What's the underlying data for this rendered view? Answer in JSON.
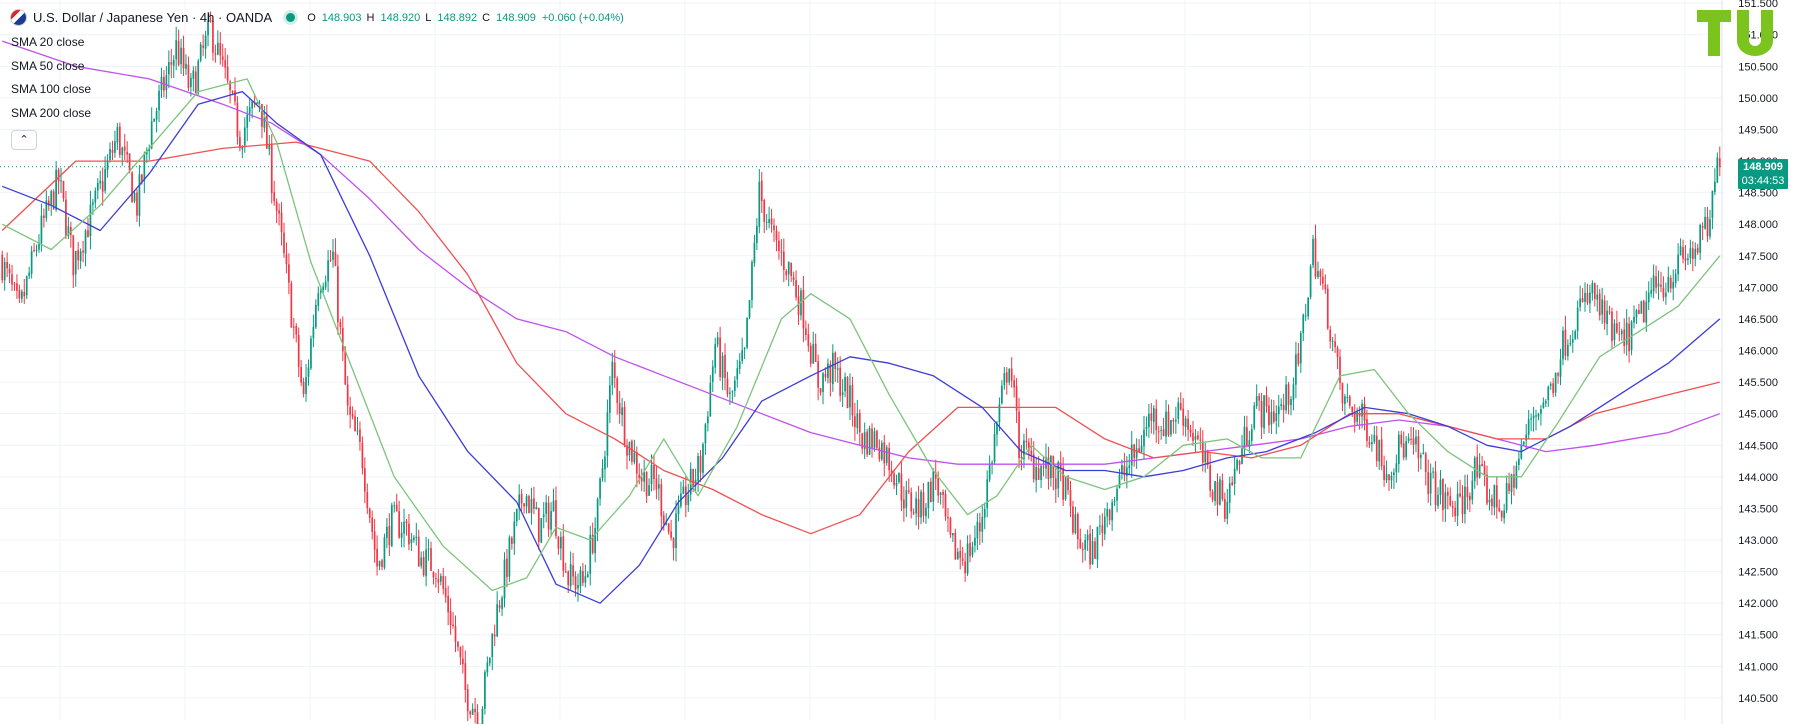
{
  "header": {
    "symbol_title": "U.S. Dollar / Japanese Yen · 4h · OANDA",
    "ohlc": [
      {
        "label": "O",
        "value": "148.903"
      },
      {
        "label": "H",
        "value": "148.920"
      },
      {
        "label": "L",
        "value": "148.892"
      },
      {
        "label": "C",
        "value": "148.909"
      },
      {
        "label": "",
        "value": "+0.060 (+0.04%)"
      }
    ]
  },
  "indicators": {
    "items": [
      "SMA 20 close",
      "SMA 50 close",
      "SMA 100 close",
      "SMA 200 close"
    ],
    "collapse_icon": "chevron-up-icon"
  },
  "last_price": {
    "value": "148.909",
    "countdown": "03:44:53",
    "color": "#089981"
  },
  "logo": {
    "icon": "tradingview-logo",
    "color": "#7bc41d"
  },
  "colors": {
    "up": "#089981",
    "down": "#f23645",
    "sma20": "#7cc47c",
    "sma50": "#3c3cd8",
    "sma100": "#f05050",
    "sma200": "#c050f0",
    "grid": "#f0f3fa"
  },
  "chart_data": {
    "type": "candlestick",
    "instrument": "USD/JPY",
    "timeframe": "4h",
    "ylim": [
      140.15,
      151.55
    ],
    "y_ticks": [
      "140.500",
      "141.000",
      "141.500",
      "142.000",
      "142.500",
      "143.000",
      "143.500",
      "144.000",
      "144.500",
      "145.000",
      "145.500",
      "146.000",
      "146.500",
      "147.000",
      "147.500",
      "148.000",
      "148.500",
      "149.000",
      "149.500",
      "150.000",
      "150.500",
      "151.000",
      "151.500"
    ],
    "legend": "top-left",
    "grid": true,
    "last_value": 148.909,
    "price_path": [
      [
        0,
        147.5
      ],
      [
        8,
        146.6
      ],
      [
        16,
        147.8
      ],
      [
        24,
        148.7
      ],
      [
        30,
        147.4
      ],
      [
        38,
        148.2
      ],
      [
        48,
        149.4
      ],
      [
        56,
        148.3
      ],
      [
        62,
        149.6
      ],
      [
        72,
        150.8
      ],
      [
        78,
        150.1
      ],
      [
        86,
        151.1
      ],
      [
        92,
        150.3
      ],
      [
        98,
        149.4
      ],
      [
        106,
        150.0
      ],
      [
        112,
        148.5
      ],
      [
        118,
        146.9
      ],
      [
        124,
        145.2
      ],
      [
        130,
        147.1
      ],
      [
        136,
        147.5
      ],
      [
        142,
        145.0
      ],
      [
        148,
        144.3
      ],
      [
        154,
        142.6
      ],
      [
        160,
        143.3
      ],
      [
        166,
        143.2
      ],
      [
        172,
        142.7
      ],
      [
        178,
        142.6
      ],
      [
        184,
        141.8
      ],
      [
        190,
        140.6
      ],
      [
        196,
        140.2
      ],
      [
        202,
        141.7
      ],
      [
        208,
        142.8
      ],
      [
        214,
        143.8
      ],
      [
        220,
        143.2
      ],
      [
        226,
        143.5
      ],
      [
        232,
        142.4
      ],
      [
        238,
        142.3
      ],
      [
        244,
        143.4
      ],
      [
        250,
        145.7
      ],
      [
        256,
        144.6
      ],
      [
        262,
        144.0
      ],
      [
        268,
        143.9
      ],
      [
        274,
        143.0
      ],
      [
        280,
        143.7
      ],
      [
        286,
        144.2
      ],
      [
        292,
        146.1
      ],
      [
        298,
        145.2
      ],
      [
        304,
        145.9
      ],
      [
        310,
        148.5
      ],
      [
        316,
        147.7
      ],
      [
        322,
        147.3
      ],
      [
        328,
        146.6
      ],
      [
        334,
        145.5
      ],
      [
        340,
        145.7
      ],
      [
        346,
        145.3
      ],
      [
        352,
        144.6
      ],
      [
        358,
        144.6
      ],
      [
        364,
        144.2
      ],
      [
        370,
        143.6
      ],
      [
        376,
        143.5
      ],
      [
        382,
        144.0
      ],
      [
        388,
        142.9
      ],
      [
        394,
        142.7
      ],
      [
        400,
        143.2
      ],
      [
        406,
        144.6
      ],
      [
        412,
        145.9
      ],
      [
        416,
        144.5
      ],
      [
        422,
        144.2
      ],
      [
        428,
        144.1
      ],
      [
        434,
        143.9
      ],
      [
        440,
        143.0
      ],
      [
        446,
        142.8
      ],
      [
        452,
        143.5
      ],
      [
        458,
        144.0
      ],
      [
        464,
        144.4
      ],
      [
        470,
        145.0
      ],
      [
        476,
        144.8
      ],
      [
        482,
        145.1
      ],
      [
        488,
        144.6
      ],
      [
        494,
        143.9
      ],
      [
        500,
        143.6
      ],
      [
        506,
        144.3
      ],
      [
        512,
        145.1
      ],
      [
        518,
        145.0
      ],
      [
        524,
        145.1
      ],
      [
        530,
        145.8
      ],
      [
        536,
        147.6
      ],
      [
        542,
        146.6
      ],
      [
        548,
        145.2
      ],
      [
        554,
        145.0
      ],
      [
        560,
        144.7
      ],
      [
        566,
        144.1
      ],
      [
        572,
        144.5
      ],
      [
        578,
        144.4
      ],
      [
        584,
        143.9
      ],
      [
        590,
        143.6
      ],
      [
        596,
        143.5
      ],
      [
        602,
        144.1
      ],
      [
        608,
        143.7
      ],
      [
        614,
        143.5
      ],
      [
        620,
        144.3
      ],
      [
        626,
        145.0
      ],
      [
        632,
        145.3
      ],
      [
        638,
        146.1
      ],
      [
        644,
        146.6
      ],
      [
        650,
        146.9
      ],
      [
        656,
        146.4
      ],
      [
        662,
        146.1
      ],
      [
        668,
        146.4
      ],
      [
        674,
        146.9
      ],
      [
        680,
        147.1
      ],
      [
        686,
        147.4
      ],
      [
        692,
        147.6
      ],
      [
        698,
        148.0
      ],
      [
        701,
        148.909
      ]
    ],
    "sma20": [
      [
        0,
        148.0
      ],
      [
        20,
        147.6
      ],
      [
        40,
        148.3
      ],
      [
        60,
        149.2
      ],
      [
        80,
        150.1
      ],
      [
        100,
        150.3
      ],
      [
        112,
        149.3
      ],
      [
        126,
        147.4
      ],
      [
        140,
        146.0
      ],
      [
        160,
        144.0
      ],
      [
        180,
        142.9
      ],
      [
        200,
        142.2
      ],
      [
        214,
        142.4
      ],
      [
        226,
        143.2
      ],
      [
        240,
        143.0
      ],
      [
        256,
        143.7
      ],
      [
        270,
        144.6
      ],
      [
        284,
        143.7
      ],
      [
        300,
        144.8
      ],
      [
        318,
        146.5
      ],
      [
        330,
        146.9
      ],
      [
        346,
        146.5
      ],
      [
        362,
        145.3
      ],
      [
        380,
        144.1
      ],
      [
        394,
        143.4
      ],
      [
        406,
        143.7
      ],
      [
        420,
        144.5
      ],
      [
        434,
        144.0
      ],
      [
        450,
        143.8
      ],
      [
        466,
        144.0
      ],
      [
        482,
        144.5
      ],
      [
        500,
        144.6
      ],
      [
        514,
        144.3
      ],
      [
        530,
        144.3
      ],
      [
        546,
        145.6
      ],
      [
        560,
        145.7
      ],
      [
        574,
        145.0
      ],
      [
        590,
        144.4
      ],
      [
        606,
        144.0
      ],
      [
        620,
        144.0
      ],
      [
        634,
        144.8
      ],
      [
        652,
        145.9
      ],
      [
        668,
        146.3
      ],
      [
        684,
        146.7
      ],
      [
        701,
        147.5
      ]
    ],
    "sma50": [
      [
        0,
        148.6
      ],
      [
        20,
        148.3
      ],
      [
        40,
        147.9
      ],
      [
        60,
        148.8
      ],
      [
        80,
        149.9
      ],
      [
        98,
        150.1
      ],
      [
        112,
        149.6
      ],
      [
        130,
        149.1
      ],
      [
        150,
        147.5
      ],
      [
        170,
        145.6
      ],
      [
        190,
        144.4
      ],
      [
        210,
        143.6
      ],
      [
        226,
        142.3
      ],
      [
        244,
        142.0
      ],
      [
        260,
        142.6
      ],
      [
        276,
        143.6
      ],
      [
        294,
        144.3
      ],
      [
        310,
        145.2
      ],
      [
        330,
        145.6
      ],
      [
        346,
        145.9
      ],
      [
        362,
        145.8
      ],
      [
        380,
        145.6
      ],
      [
        400,
        145.1
      ],
      [
        416,
        144.4
      ],
      [
        434,
        144.1
      ],
      [
        450,
        144.1
      ],
      [
        466,
        144.0
      ],
      [
        482,
        144.1
      ],
      [
        500,
        144.3
      ],
      [
        516,
        144.4
      ],
      [
        536,
        144.7
      ],
      [
        556,
        145.1
      ],
      [
        574,
        145.0
      ],
      [
        590,
        144.8
      ],
      [
        606,
        144.5
      ],
      [
        620,
        144.4
      ],
      [
        640,
        144.8
      ],
      [
        660,
        145.3
      ],
      [
        680,
        145.8
      ],
      [
        701,
        146.5
      ]
    ],
    "sma100": [
      [
        0,
        147.9
      ],
      [
        30,
        149.0
      ],
      [
        60,
        149.0
      ],
      [
        90,
        149.2
      ],
      [
        120,
        149.3
      ],
      [
        150,
        149.0
      ],
      [
        170,
        148.2
      ],
      [
        190,
        147.2
      ],
      [
        210,
        145.8
      ],
      [
        230,
        145.0
      ],
      [
        250,
        144.6
      ],
      [
        270,
        144.1
      ],
      [
        290,
        143.8
      ],
      [
        310,
        143.4
      ],
      [
        330,
        143.1
      ],
      [
        350,
        143.4
      ],
      [
        370,
        144.4
      ],
      [
        390,
        145.1
      ],
      [
        410,
        145.1
      ],
      [
        430,
        145.1
      ],
      [
        450,
        144.6
      ],
      [
        470,
        144.3
      ],
      [
        490,
        144.4
      ],
      [
        510,
        144.3
      ],
      [
        530,
        144.5
      ],
      [
        550,
        145.0
      ],
      [
        570,
        145.0
      ],
      [
        590,
        144.8
      ],
      [
        610,
        144.6
      ],
      [
        630,
        144.6
      ],
      [
        650,
        145.0
      ],
      [
        680,
        145.3
      ],
      [
        701,
        145.5
      ]
    ],
    "sma200": [
      [
        0,
        150.9
      ],
      [
        30,
        150.5
      ],
      [
        60,
        150.3
      ],
      [
        90,
        149.9
      ],
      [
        110,
        149.6
      ],
      [
        130,
        149.1
      ],
      [
        150,
        148.4
      ],
      [
        170,
        147.6
      ],
      [
        190,
        147.0
      ],
      [
        210,
        146.5
      ],
      [
        230,
        146.3
      ],
      [
        250,
        145.9
      ],
      [
        270,
        145.6
      ],
      [
        290,
        145.3
      ],
      [
        310,
        145.0
      ],
      [
        330,
        144.7
      ],
      [
        350,
        144.5
      ],
      [
        370,
        144.3
      ],
      [
        390,
        144.2
      ],
      [
        410,
        144.2
      ],
      [
        430,
        144.2
      ],
      [
        450,
        144.2
      ],
      [
        470,
        144.3
      ],
      [
        490,
        144.4
      ],
      [
        510,
        144.5
      ],
      [
        530,
        144.6
      ],
      [
        550,
        144.8
      ],
      [
        570,
        144.9
      ],
      [
        590,
        144.8
      ],
      [
        610,
        144.6
      ],
      [
        630,
        144.4
      ],
      [
        650,
        144.5
      ],
      [
        680,
        144.7
      ],
      [
        701,
        145.0
      ]
    ]
  }
}
